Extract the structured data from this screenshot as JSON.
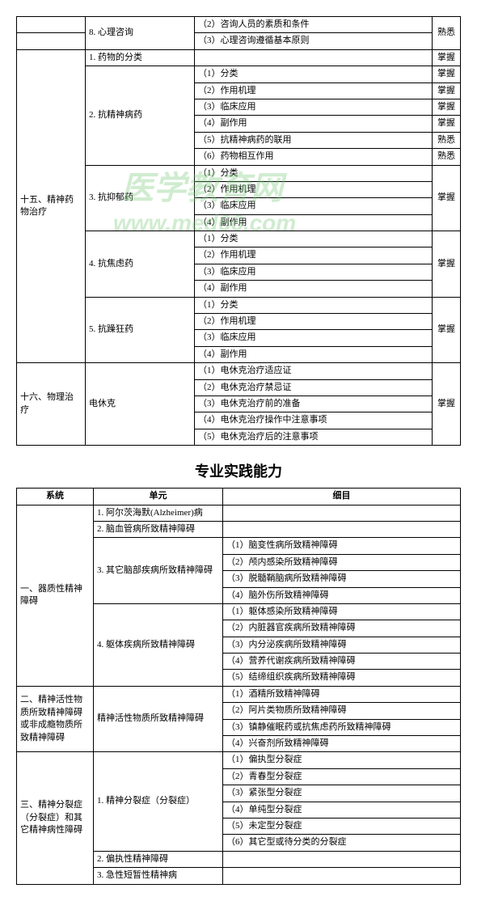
{
  "watermark_text": "医学教育网",
  "watermark_url": "www.med66.com",
  "table1": {
    "r0": {
      "c2": "8. 心理咨询",
      "c3a": "（2）咨询人员的素质和条件",
      "c3b": "（3）心理咨询遵循基本原则",
      "c4": "熟悉"
    },
    "sec15": "十五、精神药物治疗",
    "r1": {
      "c2": "1. 药物的分类",
      "c4": "掌握"
    },
    "r2": {
      "c2": "2. 抗精神病药",
      "i1": "（1）分类",
      "i2": "（2）作用机理",
      "i3": "（3）临床应用",
      "i4": "（4）副作用",
      "i5": "（5）抗精神病药的联用",
      "i6": "（6）药物相互作用",
      "m1": "掌握",
      "m2": "掌握",
      "m3": "掌握",
      "m4": "掌握",
      "m5": "熟悉",
      "m6": "熟悉"
    },
    "r3": {
      "c2": "3. 抗抑郁药",
      "i1": "（1）分类",
      "i2": "（2）作用机理",
      "i3": "（3）临床应用",
      "i4": "（4）副作用",
      "m": "掌握"
    },
    "r4": {
      "c2": "4. 抗焦虑药",
      "i1": "（1）分类",
      "i2": "（2）作用机理",
      "i3": "（3）临床应用",
      "i4": "（4）副作用",
      "m": "掌握"
    },
    "r5": {
      "c2": "5. 抗躁狂药",
      "i1": "（1）分类",
      "i2": "（2）作用机理",
      "i3": "（3）临床应用",
      "i4": "（4）副作用",
      "m": "掌握"
    },
    "sec16": "十六、物理治疗",
    "r6": {
      "c2": "电休克",
      "i1": "（1）电休克治疗适应证",
      "i2": "（2）电休克治疗禁忌证",
      "i3": "（3）电休克治疗前的准备",
      "i4": "（4）电休克治疗操作中注意事项",
      "i5": "（5）电休克治疗后的注意事项",
      "m": "掌握"
    }
  },
  "section_title": "专业实践能力",
  "table2": {
    "h1": "系统",
    "h2": "单元",
    "h3": "细目",
    "g1": {
      "title": "一、器质性精神障碍",
      "u1": "1. 阿尔茨海默(Alzheimer)病",
      "u2": "2. 脑血管病所致精神障碍",
      "u3": {
        "t": "3. 其它脑部疾病所致精神障碍",
        "i1": "（1）脑变性病所致精神障碍",
        "i2": "（2）颅内感染所致精神障碍",
        "i3": "（3）脱髓鞘脑病所致精神障碍",
        "i4": "（4）脑外伤所致精神障碍"
      },
      "u4": {
        "t": "4. 躯体疾病所致精神障碍",
        "i1": "（1）躯体感染所致精神障碍",
        "i2": "（2）内脏器官疾病所致精神障碍",
        "i3": "（3）内分泌疾病所致精神障碍",
        "i4": "（4）营养代谢疾病所致精神障碍",
        "i5": "（5）结缔组织疾病所致精神障碍"
      }
    },
    "g2": {
      "title": "二、精神活性物质所致精神障碍或非成瘾物质所致精神障碍",
      "u1": {
        "t": "精神活性物质所致精神障碍",
        "i1": "（1）酒精所致精神障碍",
        "i2": "（2）阿片类物质所致精神障碍",
        "i3": "（3）镇静催眠药或抗焦虑药所致精神障碍",
        "i4": "（4）兴奋剂所致精神障碍"
      }
    },
    "g3": {
      "title": "三、精神分裂症（分裂症）和其它精神病性障碍",
      "u1": {
        "t": "1. 精神分裂症（分裂症）",
        "i1": "（1）偏执型分裂症",
        "i2": "（2）青春型分裂症",
        "i3": "（3）紧张型分裂症",
        "i4": "（4）单纯型分裂症",
        "i5": "（5）未定型分裂症",
        "i6": "（6）其它型或待分类的分裂症"
      },
      "u2": "2. 偏执性精神障碍",
      "u3": "3. 急性短暂性精神病"
    }
  }
}
